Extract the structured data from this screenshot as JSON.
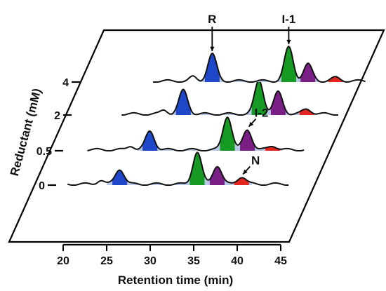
{
  "chart_data": {
    "type": "area",
    "xlabel": "Retention time (min)",
    "ylabel": "Reductant (mM)",
    "xlim": [
      20,
      45
    ],
    "xticks": [
      20,
      25,
      30,
      35,
      40,
      45
    ],
    "series": [
      {
        "name": "0",
        "x_start": 20.5,
        "x_end": 46,
        "peaks": [
          {
            "species": "R",
            "center": 26.5,
            "height": 0.45,
            "color": "#1f47c9"
          },
          {
            "species": "I-1",
            "center": 35.4,
            "height": 0.95,
            "color": "#179a24"
          },
          {
            "species": "I-2",
            "center": 37.7,
            "height": 0.55,
            "color": "#7a1f86"
          },
          {
            "species": "N",
            "center": 40.5,
            "height": 0.22,
            "color": "#e3261f"
          }
        ]
      },
      {
        "name": "0.5",
        "x_start": 21,
        "x_end": 46,
        "peaks": [
          {
            "species": "R",
            "center": 28.2,
            "height": 0.55,
            "color": "#1f47c9"
          },
          {
            "species": "I-1",
            "center": 37.1,
            "height": 1.0,
            "color": "#179a24"
          },
          {
            "species": "I-2",
            "center": 39.4,
            "height": 0.6,
            "color": "#7a1f86"
          },
          {
            "species": "N",
            "center": 42.3,
            "height": 0.12,
            "color": "#e3261f"
          }
        ]
      },
      {
        "name": "2",
        "x_start": 23,
        "x_end": 48,
        "peaks": [
          {
            "species": "R",
            "center": 30.1,
            "height": 0.7,
            "color": "#1f47c9"
          },
          {
            "species": "I-1",
            "center": 38.8,
            "height": 1.0,
            "color": "#179a24"
          },
          {
            "species": "I-2",
            "center": 41.0,
            "height": 0.65,
            "color": "#7a1f86"
          },
          {
            "species": "N",
            "center": 44.3,
            "height": 0.15,
            "color": "#e3261f"
          }
        ]
      },
      {
        "name": "4",
        "x_start": 25,
        "x_end": 49.5,
        "peaks": [
          {
            "species": "R",
            "center": 31.8,
            "height": 0.8,
            "color": "#1f47c9"
          },
          {
            "species": "I-1",
            "center": 40.6,
            "height": 1.0,
            "color": "#179a24"
          },
          {
            "species": "I-2",
            "center": 42.8,
            "height": 0.5,
            "color": "#7a1f86"
          },
          {
            "species": "N",
            "center": 46.0,
            "height": 0.1,
            "color": "#e3261f"
          }
        ]
      }
    ],
    "annotations": [
      {
        "text": "R",
        "series": "4",
        "species": "R"
      },
      {
        "text": "I-1",
        "series": "4",
        "species": "I-1"
      },
      {
        "text": "I-2",
        "series": "0.5",
        "species": "I-2"
      },
      {
        "text": "N",
        "series": "0",
        "species": "N"
      }
    ],
    "colors": {
      "baseline_fill": "#b8c9e6",
      "R": "#1f47c9",
      "I-1": "#179a24",
      "I-2": "#7a1f86",
      "N": "#e3261f"
    }
  }
}
